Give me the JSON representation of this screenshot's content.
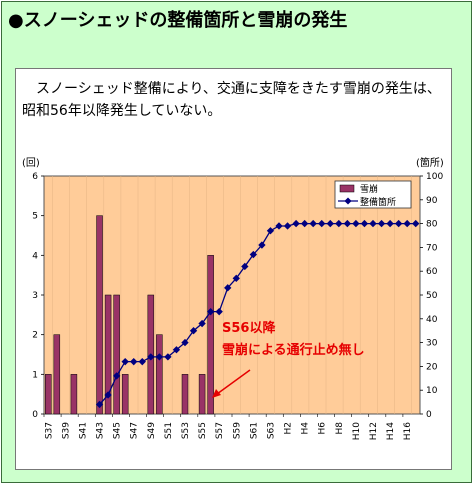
{
  "header": {
    "title": "●スノーシェッドの整備箇所と雪崩の発生"
  },
  "description": "スノーシェッド整備により、交通に支障をきたす雪崩の発生は、昭和56年以降発生していない。",
  "colors": {
    "background": "#ccffcc",
    "plot_area": "#ffcc99",
    "bar": "#993366",
    "line": "#000080",
    "annotation": "#e60000"
  },
  "chart_data": {
    "type": "bar",
    "categories": [
      "S37",
      "S38",
      "S39",
      "S40",
      "S41",
      "S42",
      "S43",
      "S44",
      "S45",
      "S46",
      "S47",
      "S48",
      "S49",
      "S50",
      "S51",
      "S52",
      "S53",
      "S54",
      "S55",
      "S56",
      "S57",
      "S58",
      "S59",
      "S60",
      "S61",
      "S62",
      "S63",
      "H1",
      "H2",
      "H3",
      "H4",
      "H5",
      "H6",
      "H7",
      "H8",
      "H9",
      "H10",
      "H11",
      "H12",
      "H13",
      "H14",
      "H15",
      "H16",
      "H17"
    ],
    "x_tick_labels": [
      "S37",
      "S39",
      "S41",
      "S43",
      "S45",
      "S47",
      "S49",
      "S51",
      "S53",
      "S55",
      "S57",
      "S59",
      "S61",
      "S63",
      "H2",
      "H4",
      "H6",
      "H8",
      "H10",
      "H12",
      "H14",
      "H16"
    ],
    "series": [
      {
        "name": "雪崩",
        "type": "bar",
        "axis": "left",
        "values": [
          1,
          2,
          0,
          1,
          0,
          0,
          5,
          3,
          3,
          1,
          0,
          0,
          3,
          2,
          0,
          0,
          1,
          0,
          1,
          4,
          0,
          0,
          0,
          0,
          0,
          0,
          0,
          0,
          0,
          0,
          0,
          0,
          0,
          0,
          0,
          0,
          0,
          0,
          0,
          0,
          0,
          0,
          0,
          0
        ]
      },
      {
        "name": "整備箇所",
        "type": "line",
        "axis": "right",
        "values": [
          null,
          null,
          null,
          null,
          null,
          null,
          4,
          8,
          16,
          22,
          22,
          22,
          24,
          24,
          24,
          27,
          30,
          35,
          38,
          43,
          43,
          53,
          57,
          62,
          67,
          71,
          77,
          79,
          79,
          80,
          80,
          80,
          80,
          80,
          80,
          80,
          80,
          80,
          80,
          80,
          80,
          80,
          80,
          80
        ]
      }
    ],
    "y_left": {
      "label": "(回)",
      "range": [
        0,
        6
      ],
      "ticks": [
        "0",
        "1",
        "2",
        "3",
        "4",
        "5",
        "6"
      ]
    },
    "y_right": {
      "label": "(箇所)",
      "range": [
        0,
        100
      ],
      "ticks": [
        "0",
        "10",
        "20",
        "30",
        "40",
        "50",
        "60",
        "70",
        "80",
        "90",
        "100"
      ]
    },
    "legend_position": "top-right",
    "annotation": {
      "line1": "S56以降",
      "line2": "雪崩による通行止め無し"
    }
  }
}
